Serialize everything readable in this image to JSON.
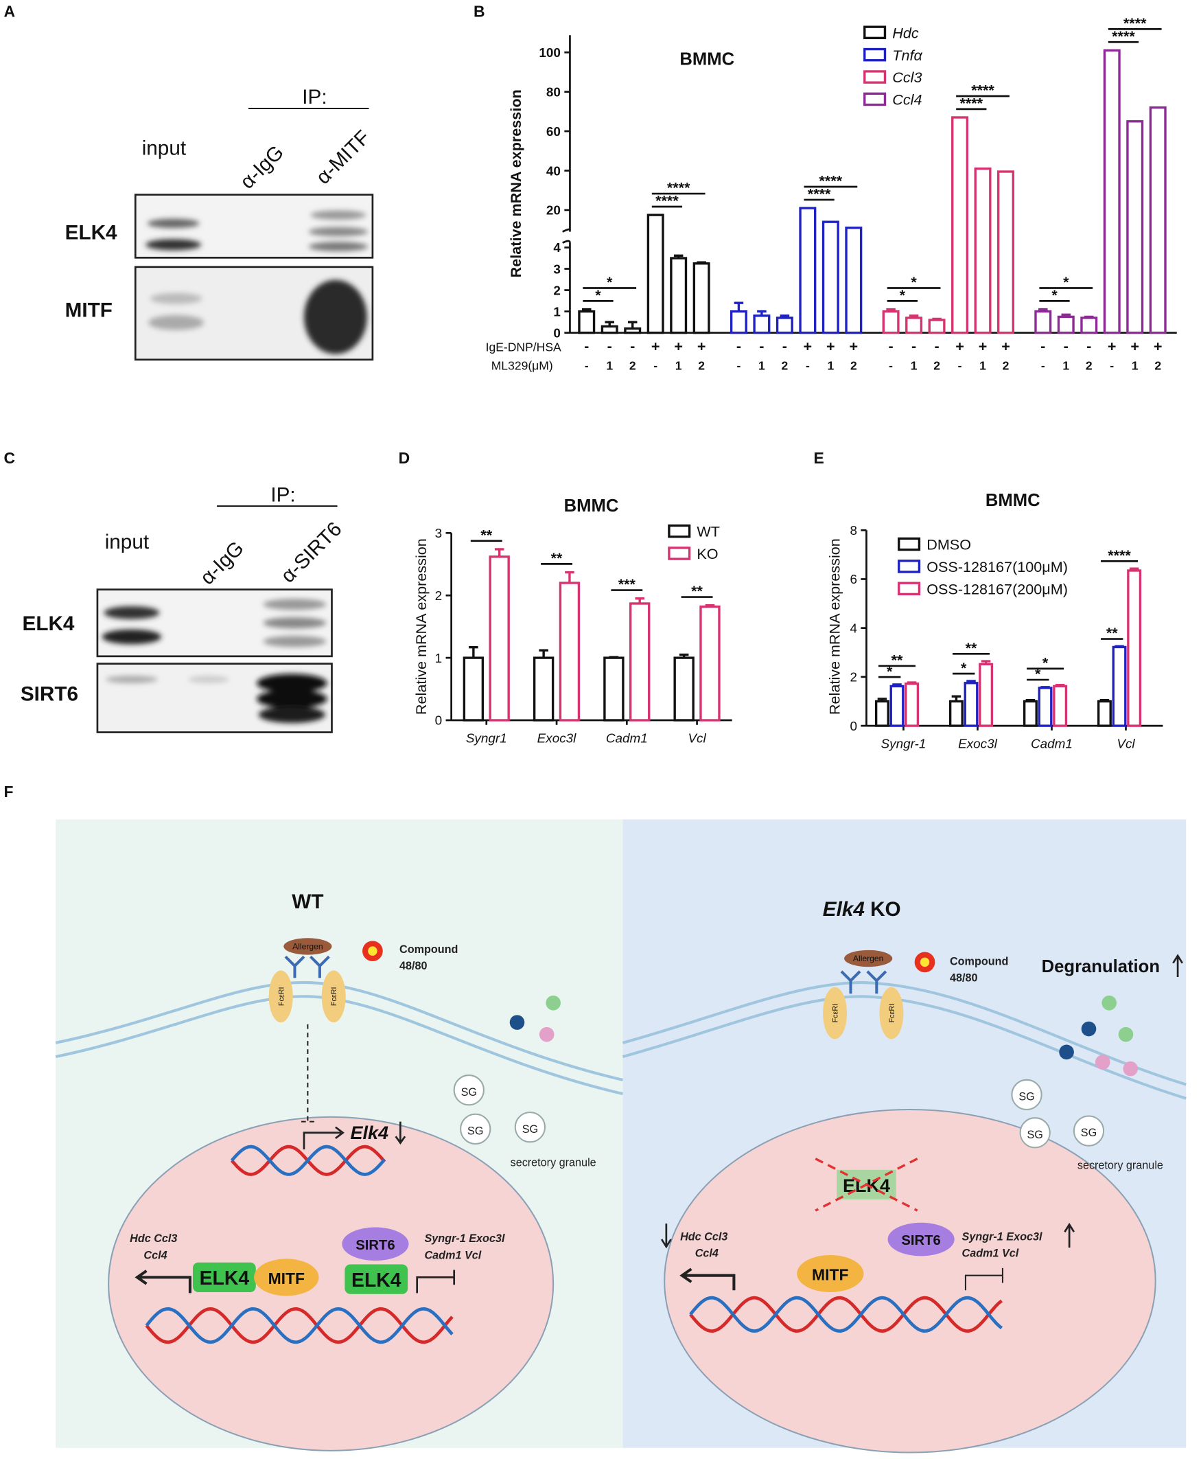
{
  "panel_labels": [
    "A",
    "B",
    "C",
    "D",
    "E",
    "F"
  ],
  "blot_a": {
    "ip_label": "IP:",
    "lanes": [
      "input",
      "α-IgG",
      "α-MITF"
    ],
    "rows": [
      "ELK4",
      "MITF"
    ]
  },
  "blot_c": {
    "ip_label": "IP:",
    "lanes": [
      "input",
      "α-IgG",
      "α-SIRT6"
    ],
    "rows": [
      "ELK4",
      "SIRT6"
    ]
  },
  "chart_data": [
    {
      "type": "bar",
      "title": "BMMC",
      "y_label": "Relative mRNA expression",
      "y_break": true,
      "ylim": [
        0,
        4
      ],
      "yticks": [
        0,
        1,
        2,
        3,
        4
      ],
      "y_upper_lim": [
        9,
        104
      ],
      "y_upper_ticks": [
        20,
        40,
        60,
        80,
        100
      ],
      "series": [
        {
          "name": "Hdc",
          "color": "#111111",
          "values": [
            1.0,
            0.3,
            0.2,
            17.5,
            3.5,
            3.25
          ],
          "errors": [
            0.1,
            0.2,
            0.3,
            0,
            0.12,
            0.05
          ],
          "significance": [
            "*",
            "*",
            "****",
            "****"
          ]
        },
        {
          "name": "Tnfα",
          "color": "#1f22c0",
          "values": [
            1.0,
            0.8,
            0.7,
            21,
            14,
            11
          ],
          "errors": [
            0.4,
            0.2,
            0.1,
            0,
            0,
            0
          ],
          "significance": [
            "",
            "",
            "****",
            "****"
          ]
        },
        {
          "name": "Ccl3",
          "color": "#d63470",
          "values": [
            1.0,
            0.7,
            0.6,
            67,
            41,
            39.5
          ],
          "errors": [
            0.1,
            0.1,
            0.05,
            0,
            0,
            0
          ],
          "significance": [
            "*",
            "*",
            "****",
            "****"
          ]
        },
        {
          "name": "Ccl4",
          "color": "#8e2a96",
          "values": [
            1.0,
            0.75,
            0.7,
            101,
            65,
            72
          ],
          "errors": [
            0.1,
            0.1,
            0.05,
            0,
            0,
            0
          ],
          "significance": [
            "*",
            "*",
            "****",
            "****"
          ]
        }
      ],
      "condition_rows": [
        {
          "label": "IgE-DNP/HSA",
          "values": [
            "-",
            "-",
            "-",
            "+",
            "+",
            "+"
          ]
        },
        {
          "label": "ML329(μM)",
          "values": [
            "-",
            "1",
            "2",
            "-",
            "1",
            "2"
          ]
        }
      ]
    },
    {
      "type": "bar",
      "title": "BMMC",
      "y_label": "Relative mRNA expression",
      "categories": [
        "Syngr1",
        "Exoc3l",
        "Cadm1",
        "Vcl"
      ],
      "ylim": [
        0,
        3
      ],
      "yticks": [
        0,
        1,
        2,
        3
      ],
      "series": [
        {
          "name": "WT",
          "color": "#111111",
          "values": [
            1.0,
            1.0,
            1.0,
            1.0
          ],
          "errors": [
            0.17,
            0.12,
            0.01,
            0.05
          ]
        },
        {
          "name": "KO",
          "color": "#d63470",
          "values": [
            2.62,
            2.2,
            1.87,
            1.82
          ],
          "errors": [
            0.12,
            0.17,
            0.08,
            0.02
          ]
        }
      ],
      "significance": [
        "**",
        "**",
        "***",
        "**"
      ]
    },
    {
      "type": "bar",
      "title": "BMMC",
      "y_label": "Relative mRNA expression",
      "categories": [
        "Syngr-1",
        "Exoc3l",
        "Cadm1",
        "Vcl"
      ],
      "ylim": [
        0,
        8
      ],
      "yticks": [
        0,
        2,
        4,
        6,
        8
      ],
      "series": [
        {
          "name": "DMSO",
          "color": "#111111",
          "values": [
            1.0,
            1.0,
            1.0,
            1.0
          ],
          "errors": [
            0.1,
            0.2,
            0.05,
            0.05
          ]
        },
        {
          "name": "OSS-128167(100μM)",
          "color": "#1f22c0",
          "values": [
            1.62,
            1.75,
            1.55,
            3.22
          ],
          "errors": [
            0.07,
            0.08,
            0.03,
            0.03
          ]
        },
        {
          "name": "OSS-128167(200μM)",
          "color": "#d63470",
          "values": [
            1.72,
            2.52,
            1.62,
            6.35
          ],
          "errors": [
            0.05,
            0.12,
            0.05,
            0.08
          ]
        }
      ],
      "significance": [
        [
          "*",
          "**"
        ],
        [
          "*",
          "**"
        ],
        [
          "*",
          "*"
        ],
        [
          "**",
          "****"
        ]
      ]
    }
  ],
  "diagram": {
    "wt": {
      "title": "WT",
      "allergen": "Allergen",
      "compound": [
        "Compound",
        "48/80"
      ],
      "receptor": "FcεRI",
      "granule": "SG",
      "granule_caption": "secretory granule",
      "gene": "Elk4",
      "up_genes": [
        "Hdc  Ccl3",
        "Ccl4"
      ],
      "proteins": [
        "ELK4",
        "MITF",
        "SIRT6",
        "ELK4"
      ],
      "down_genes": [
        "Syngr-1  Exoc3l",
        "Cadm1  Vcl"
      ]
    },
    "ko": {
      "title_gene": "Elk4",
      "title_suffix": "KO",
      "allergen": "Allergen",
      "compound": [
        "Compound",
        "48/80"
      ],
      "effect": "Degranulation",
      "receptor": "FcεRI",
      "granule": "SG",
      "granule_caption": "secretory granule",
      "deleted": "ELK4",
      "up_genes": [
        "Hdc  Ccl3",
        "Ccl4"
      ],
      "proteins": [
        "SIRT6",
        "MITF"
      ],
      "down_genes": [
        "Syngr-1  Exoc3l",
        "Cadm1  Vcl"
      ]
    }
  }
}
